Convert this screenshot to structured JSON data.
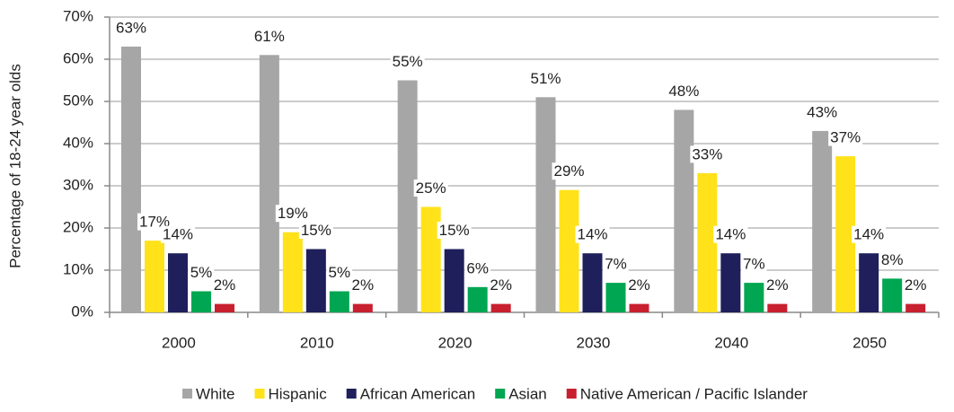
{
  "chart_data": {
    "type": "bar",
    "y_label": "Percentage of 18-24 year olds",
    "categories": [
      "2000",
      "2010",
      "2020",
      "2030",
      "2040",
      "2050"
    ],
    "series": [
      {
        "name": "White",
        "color": "#a6a6a6",
        "values": [
          63,
          61,
          55,
          51,
          48,
          43
        ],
        "value_labels": [
          "63%",
          "61%",
          "55%",
          "51%",
          "48%",
          "43%"
        ]
      },
      {
        "name": "Hispanic",
        "color": "#ffe21a",
        "values": [
          17,
          19,
          25,
          29,
          33,
          37
        ],
        "value_labels": [
          "17%",
          "19%",
          "25%",
          "29%",
          "33%",
          "37%"
        ]
      },
      {
        "name": "African American",
        "color": "#1f1f5c",
        "values": [
          14,
          15,
          15,
          14,
          14,
          14
        ],
        "value_labels": [
          "14%",
          "15%",
          "15%",
          "14%",
          "14%",
          "14%"
        ]
      },
      {
        "name": "Asian",
        "color": "#00a651",
        "values": [
          5,
          5,
          6,
          7,
          7,
          8
        ],
        "value_labels": [
          "5%",
          "5%",
          "6%",
          "7%",
          "7%",
          "8%"
        ]
      },
      {
        "name": "Native American / Pacific Islander",
        "color": "#c8202f",
        "values": [
          2,
          2,
          2,
          2,
          2,
          2
        ],
        "value_labels": [
          "2%",
          "2%",
          "2%",
          "2%",
          "2%",
          "2%"
        ]
      }
    ],
    "ylim": [
      0,
      70
    ],
    "yticks": [
      {
        "value": 0,
        "label": "0%"
      },
      {
        "value": 10,
        "label": "10%"
      },
      {
        "value": 20,
        "label": "20%"
      },
      {
        "value": 30,
        "label": "30%"
      },
      {
        "value": 40,
        "label": "40%"
      },
      {
        "value": 50,
        "label": "50%"
      },
      {
        "value": 60,
        "label": "60%"
      },
      {
        "value": 70,
        "label": "70%"
      }
    ],
    "grid": true,
    "legend": "bottom"
  }
}
